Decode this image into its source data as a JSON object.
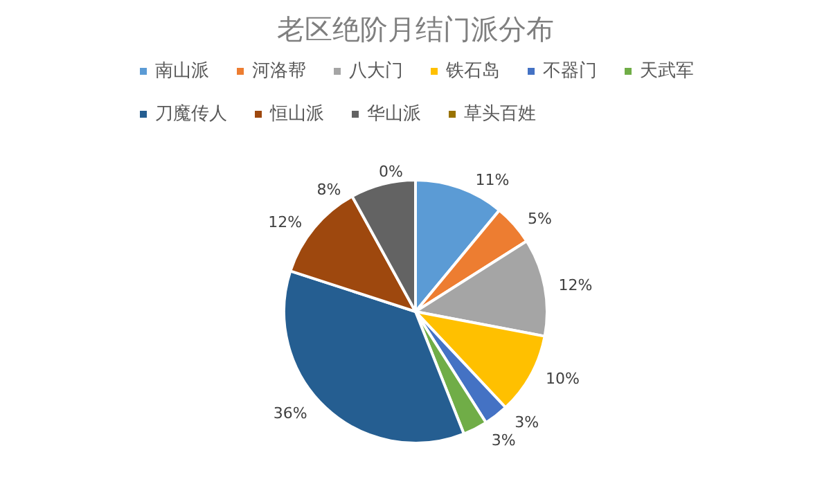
{
  "chart_data": {
    "type": "pie",
    "title": "老区绝阶月结门派分布",
    "categories": [
      "南山派",
      "河洛帮",
      "八大门",
      "铁石岛",
      "不器门",
      "天武军",
      "刀魔传人",
      "恒山派",
      "华山派",
      "草头百姓"
    ],
    "values": [
      11,
      5,
      12,
      10,
      3,
      3,
      36,
      12,
      8,
      0
    ],
    "value_labels": [
      "11%",
      "5%",
      "12%",
      "10%",
      "3%",
      "3%",
      "36%",
      "12%",
      "8%",
      "0%"
    ],
    "colors": [
      "#5b9bd5",
      "#ed7d31",
      "#a5a5a5",
      "#ffc000",
      "#4472c4",
      "#70ad47",
      "#255e91",
      "#9e480e",
      "#636363",
      "#997300"
    ],
    "legend": "top"
  }
}
